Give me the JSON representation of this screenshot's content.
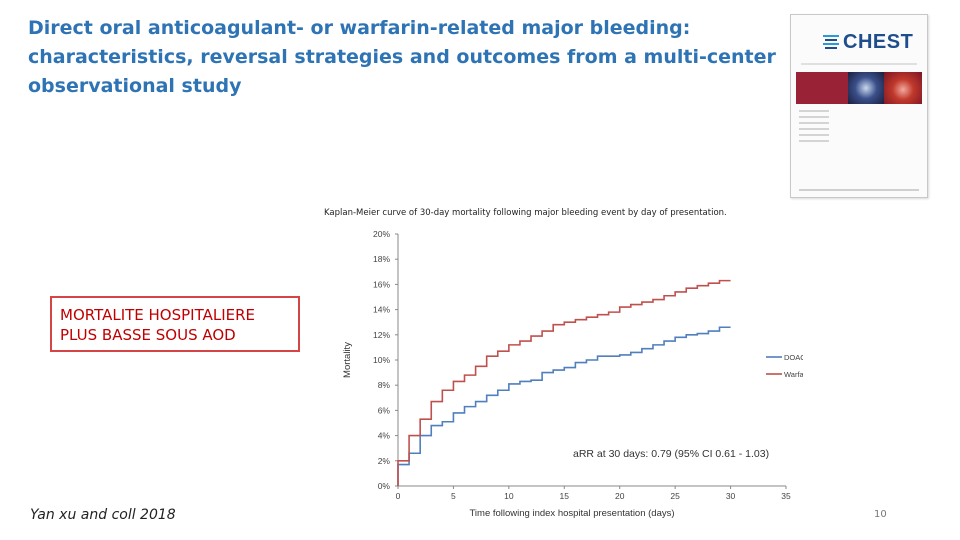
{
  "slide": {
    "title_lines": [
      "Direct oral anticoagulant- or warfarin-related major bleeding:",
      "characteristics, reversal strategies and outcomes from a multi-center",
      "observational study"
    ],
    "callout_lines": [
      "MORTALITE HOSPITALIERE",
      "PLUS BASSE SOUS AOD"
    ],
    "citation": "Yan xu and coll 2018",
    "slide_number": "10",
    "journal_logo": "CHEST",
    "colors": {
      "title": "#2e74b5",
      "callout": "#c00000",
      "callout_border": "#d64545"
    }
  },
  "figure": {
    "caption": "Kaplan-Meier curve of 30-day mortality following major bleeding event by day of presentation."
  },
  "chart_data": {
    "type": "line",
    "title": "",
    "xlabel": "Time following index hospital presentation (days)",
    "ylabel": "Mortality",
    "xlim": [
      0,
      35
    ],
    "ylim": [
      0,
      20
    ],
    "x_ticks": [
      0,
      5,
      10,
      15,
      20,
      25,
      30,
      35
    ],
    "y_ticks": [
      "0%",
      "2%",
      "4%",
      "6%",
      "8%",
      "10%",
      "12%",
      "14%",
      "16%",
      "18%",
      "20%"
    ],
    "legend_position": "right",
    "annotation": "aRR at 30 days: 0.79 (95% CI 0.61 - 1.03)",
    "series": [
      {
        "name": "DOAC",
        "color": "#4f7fbd",
        "step": true,
        "x": [
          0,
          1,
          2,
          3,
          4,
          5,
          6,
          7,
          8,
          9,
          10,
          11,
          12,
          13,
          14,
          15,
          16,
          17,
          18,
          19,
          20,
          21,
          22,
          23,
          24,
          25,
          26,
          27,
          28,
          29,
          30
        ],
        "y": [
          1.7,
          2.6,
          4.0,
          4.8,
          5.1,
          5.8,
          6.3,
          6.7,
          7.2,
          7.6,
          8.1,
          8.3,
          8.4,
          9.0,
          9.2,
          9.4,
          9.8,
          10.0,
          10.3,
          10.3,
          10.4,
          10.6,
          10.9,
          11.2,
          11.5,
          11.8,
          12.0,
          12.1,
          12.3,
          12.6,
          12.6
        ]
      },
      {
        "name": "Warfarin",
        "color": "#c0504d",
        "step": true,
        "x": [
          0,
          1,
          2,
          3,
          4,
          5,
          6,
          7,
          8,
          9,
          10,
          11,
          12,
          13,
          14,
          15,
          16,
          17,
          18,
          19,
          20,
          21,
          22,
          23,
          24,
          25,
          26,
          27,
          28,
          29,
          30
        ],
        "y": [
          2.0,
          4.0,
          5.3,
          6.7,
          7.6,
          8.3,
          8.8,
          9.5,
          10.3,
          10.7,
          11.2,
          11.5,
          11.9,
          12.3,
          12.8,
          13.0,
          13.2,
          13.4,
          13.6,
          13.8,
          14.2,
          14.4,
          14.6,
          14.8,
          15.1,
          15.4,
          15.7,
          15.9,
          16.1,
          16.3,
          16.3
        ]
      }
    ]
  }
}
